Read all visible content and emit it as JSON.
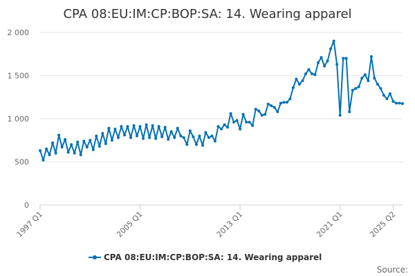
{
  "chart_data": {
    "type": "line",
    "title": "CPA 08:EU:IM:CP:BOP:SA: 14. Wearing apparel",
    "xlabel": "",
    "ylabel": "",
    "ylim": [
      0,
      2000
    ],
    "y_ticks": [
      0,
      500,
      1000,
      1500,
      2000
    ],
    "y_tick_labels": [
      "0",
      "500",
      "1 000",
      "1 500",
      "2 000"
    ],
    "x_tick_labels": [
      {
        "label": "1997 Q1",
        "index": 0
      },
      {
        "label": "2005 Q1",
        "index": 32
      },
      {
        "label": "2013 Q1",
        "index": 64
      },
      {
        "label": "2021 Q1",
        "index": 96
      },
      {
        "label": "2025 Q2",
        "index": 113
      }
    ],
    "grid": true,
    "legend_position": "bottom",
    "source_label": "Source:",
    "series": [
      {
        "name": "CPA 08:EU:IM:CP:BOP:SA: 14. Wearing apparel",
        "color": "#0070b5",
        "values": [
          630,
          520,
          650,
          580,
          720,
          600,
          810,
          670,
          760,
          610,
          700,
          600,
          730,
          580,
          740,
          670,
          750,
          640,
          800,
          680,
          830,
          710,
          890,
          750,
          880,
          780,
          910,
          810,
          910,
          780,
          920,
          800,
          910,
          770,
          930,
          780,
          920,
          770,
          910,
          790,
          900,
          760,
          850,
          780,
          890,
          800,
          780,
          700,
          860,
          790,
          700,
          800,
          690,
          840,
          780,
          800,
          740,
          910,
          880,
          930,
          900,
          1060,
          960,
          980,
          880,
          1050,
          960,
          960,
          920,
          1110,
          1090,
          1040,
          1050,
          1170,
          1150,
          1130,
          1080,
          1180,
          1190,
          1190,
          1230,
          1360,
          1460,
          1400,
          1440,
          1520,
          1570,
          1520,
          1510,
          1650,
          1710,
          1610,
          1670,
          1810,
          1900,
          1630,
          1040,
          1700,
          1700,
          1080,
          1330,
          1350,
          1370,
          1470,
          1510,
          1440,
          1720,
          1470,
          1400,
          1350,
          1270,
          1230,
          1290,
          1200,
          1180,
          1180,
          1175
        ]
      }
    ]
  }
}
